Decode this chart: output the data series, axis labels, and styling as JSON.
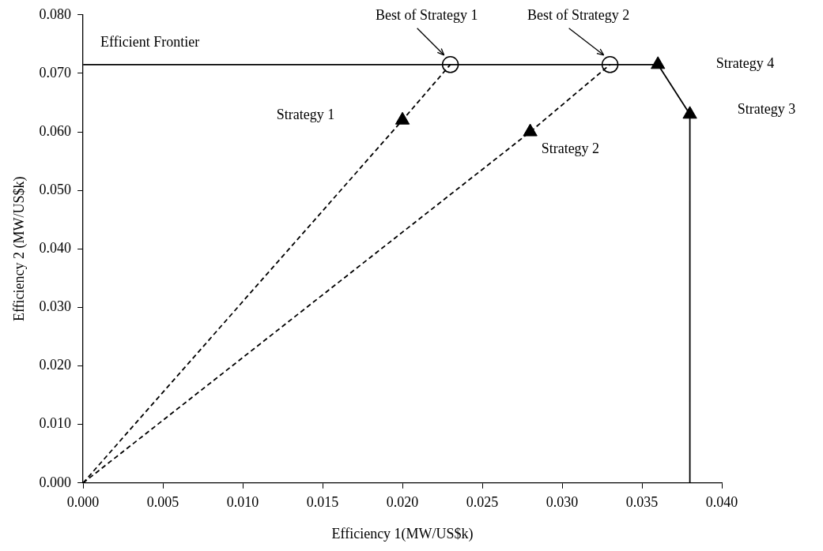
{
  "chart_data": {
    "type": "line",
    "xlabel": "Efficiency 1(MW/US$k)",
    "ylabel": "Efficiency 2 (MW/US$k)",
    "xlim": [
      0,
      0.04
    ],
    "xticks": [
      {
        "value": 0,
        "label": "0.000"
      },
      {
        "value": 0.005,
        "label": "0.005"
      },
      {
        "value": 0.01,
        "label": "0.010"
      },
      {
        "value": 0.015,
        "label": "0.015"
      },
      {
        "value": 0.02,
        "label": "0.020"
      },
      {
        "value": 0.025,
        "label": "0.025"
      },
      {
        "value": 0.03,
        "label": "0.030"
      },
      {
        "value": 0.035,
        "label": "0.035"
      },
      {
        "value": 0.04,
        "label": "0.040"
      }
    ],
    "ylim": [
      0,
      0.08
    ],
    "yticks": [
      {
        "value": 0,
        "label": "0.000"
      },
      {
        "value": 0.01,
        "label": "0.010"
      },
      {
        "value": 0.02,
        "label": "0.020"
      },
      {
        "value": 0.03,
        "label": "0.030"
      },
      {
        "value": 0.04,
        "label": "0.040"
      },
      {
        "value": 0.05,
        "label": "0.050"
      },
      {
        "value": 0.06,
        "label": "0.060"
      },
      {
        "value": 0.07,
        "label": "0.070"
      },
      {
        "value": 0.08,
        "label": "0.080"
      }
    ],
    "grid": false,
    "legend": false,
    "series": [
      {
        "color": "#000000",
        "line_style": "solid",
        "marker": "none",
        "x": [
          0,
          0.036,
          0.038,
          0.038
        ],
        "values": [
          0.0715,
          0.0715,
          0.063,
          0
        ]
      },
      {
        "color": "#000000",
        "line_style": "dashed",
        "marker": "none",
        "x": [
          0,
          0.02,
          0.023
        ],
        "values": [
          0,
          0.062,
          0.0715
        ]
      },
      {
        "color": "#000000",
        "line_style": "dashed",
        "marker": "none",
        "x": [
          0,
          0.028,
          0.033
        ],
        "values": [
          0,
          0.06,
          0.0715
        ]
      },
      {
        "type": "scatter",
        "color": "#000000",
        "marker": "triangle",
        "x": [
          0.02,
          0.028,
          0.036,
          0.038
        ],
        "values": [
          0.062,
          0.06,
          0.0715,
          0.063
        ]
      },
      {
        "type": "scatter",
        "color": "#000000",
        "marker": "circle",
        "x": [
          0.023,
          0.033
        ],
        "values": [
          0.0715,
          0.0715
        ]
      }
    ],
    "annotations": [
      {
        "text": "Efficient Frontier",
        "x": 0,
        "y": 0.0715
      },
      {
        "text": "Best of Strategy 1",
        "x": 0.023,
        "y": 0.0715
      },
      {
        "text": "Best of Strategy 2",
        "x": 0.033,
        "y": 0.0715
      },
      "Strategy 1",
      {
        "text": "Strategy 2",
        "x": 0.028,
        "y": 0.06
      },
      "Strategy 4",
      "Strategy 3"
    ]
  }
}
